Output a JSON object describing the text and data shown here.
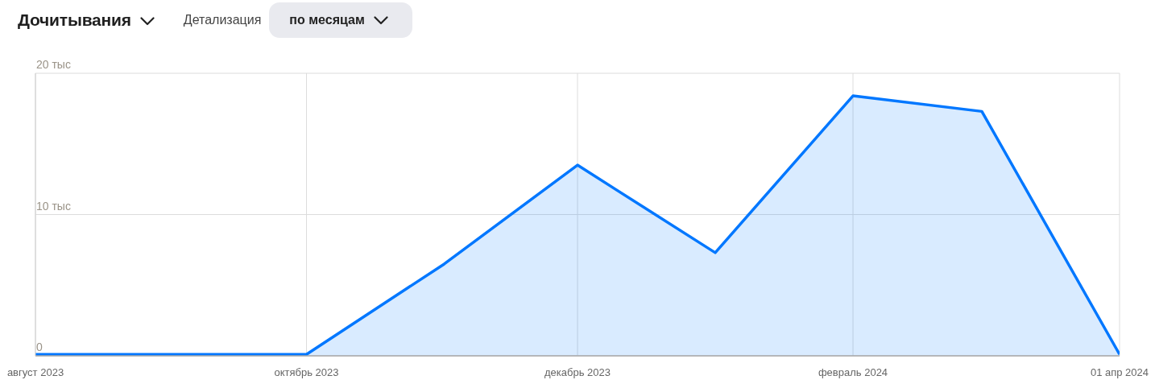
{
  "chart_data": {
    "type": "area",
    "title": "Дочитывания",
    "annotations": [
      "Детализация",
      "по месяцам"
    ],
    "x": [
      "2023-08-01",
      "2023-09-01",
      "2023-10-01",
      "2023-11-01",
      "2023-12-01",
      "2024-01-01",
      "2024-02-01",
      "2024-03-01",
      "2024-04-01"
    ],
    "values": [
      0.1,
      0.1,
      0.1,
      6.5,
      13.5,
      7.3,
      18.4,
      17.3,
      0.1
    ],
    "color": "#0077ff",
    "xlim": [
      "2023-08-01",
      "2024-04-01"
    ],
    "xticks": [
      {
        "value": "2023-08-01",
        "label": "август 2023"
      },
      {
        "value": "2023-10-01",
        "label": "октябрь 2023"
      },
      {
        "value": "2023-12-01",
        "label": "декабрь 2023"
      },
      {
        "value": "2024-02-01",
        "label": "февраль 2024"
      },
      {
        "value": "2024-04-01",
        "label": "01 апр 2024"
      }
    ],
    "ylim": [
      0,
      20
    ],
    "yticks": [
      0,
      {
        "value": 10,
        "label": "10 тыс"
      },
      {
        "value": 20,
        "label": "20 тыс"
      }
    ],
    "grid": true
  }
}
